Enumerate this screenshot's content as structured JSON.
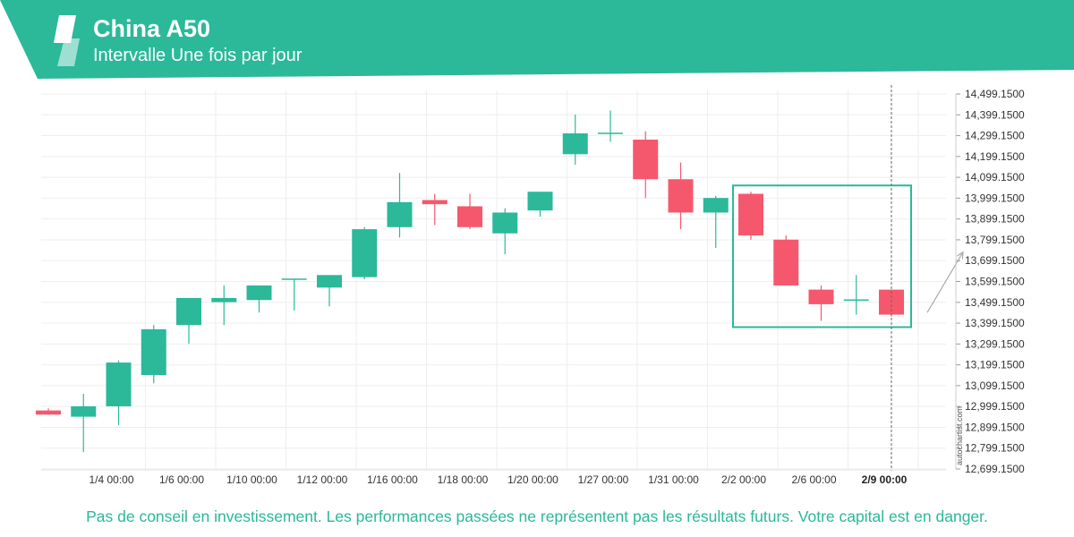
{
  "header": {
    "title": "China A50",
    "subtitle": "Intervalle Une fois par jour",
    "brand_color": "#2bb99a",
    "logo_icon": "autochartist-logo-icon"
  },
  "watermark": "autochartist.com",
  "disclaimer": "Pas de conseil en investissement. Les performances passées ne représentent pas les résultats futurs. Votre capital est en danger.",
  "colors": {
    "up": "#2bb99a",
    "down": "#f5586c",
    "pattern_box": "#2bb99a",
    "grid": "#eeeeee",
    "axis_text": "#333333"
  },
  "chart_data": {
    "type": "candlestick",
    "title": "China A50",
    "ylim": [
      12699.15,
      14499.15
    ],
    "y_ticks": [
      "14,499.1500",
      "14,399.1500",
      "14,299.1500",
      "14,199.1500",
      "14,099.1500",
      "13,999.1500",
      "13,899.1500",
      "13,799.1500",
      "13,699.1500",
      "13,599.1500",
      "13,499.1500",
      "13,399.1500",
      "13,299.1500",
      "13,199.1500",
      "13,099.1500",
      "12,999.1500",
      "12,899.1500",
      "12,799.1500",
      "12,699.1500"
    ],
    "x_ticks": [
      {
        "label": "1/4 00:00",
        "index": 2
      },
      {
        "label": "1/6 00:00",
        "index": 4
      },
      {
        "label": "1/10 00:00",
        "index": 6
      },
      {
        "label": "1/12 00:00",
        "index": 8
      },
      {
        "label": "1/16 00:00",
        "index": 10
      },
      {
        "label": "1/18 00:00",
        "index": 12
      },
      {
        "label": "1/20 00:00",
        "index": 14
      },
      {
        "label": "1/27 00:00",
        "index": 16
      },
      {
        "label": "1/31 00:00",
        "index": 18
      },
      {
        "label": "2/2 00:00",
        "index": 20
      },
      {
        "label": "2/6 00:00",
        "index": 22
      },
      {
        "label": "2/9 00:00",
        "index": 24,
        "bold": true
      }
    ],
    "candles": [
      {
        "o": 12980,
        "h": 12990,
        "l": 12960,
        "c": 12960
      },
      {
        "o": 12950,
        "h": 13060,
        "l": 12780,
        "c": 13000
      },
      {
        "o": 13000,
        "h": 13220,
        "l": 12910,
        "c": 13210
      },
      {
        "o": 13150,
        "h": 13390,
        "l": 13110,
        "c": 13370
      },
      {
        "o": 13390,
        "h": 13520,
        "l": 13300,
        "c": 13520
      },
      {
        "o": 13500,
        "h": 13580,
        "l": 13390,
        "c": 13520
      },
      {
        "o": 13510,
        "h": 13580,
        "l": 13450,
        "c": 13580
      },
      {
        "o": 13610,
        "h": 13610,
        "l": 13460,
        "c": 13610
      },
      {
        "o": 13570,
        "h": 13620,
        "l": 13480,
        "c": 13630
      },
      {
        "o": 13620,
        "h": 13860,
        "l": 13610,
        "c": 13850
      },
      {
        "o": 13860,
        "h": 14120,
        "l": 13810,
        "c": 13980
      },
      {
        "o": 13990,
        "h": 14020,
        "l": 13870,
        "c": 13970
      },
      {
        "o": 13960,
        "h": 14020,
        "l": 13850,
        "c": 13860
      },
      {
        "o": 13830,
        "h": 13950,
        "l": 13730,
        "c": 13930
      },
      {
        "o": 13940,
        "h": 14030,
        "l": 13910,
        "c": 14030
      },
      {
        "o": 14210,
        "h": 14400,
        "l": 14160,
        "c": 14310
      },
      {
        "o": 14310,
        "h": 14420,
        "l": 14270,
        "c": 14310
      },
      {
        "o": 14280,
        "h": 14320,
        "l": 14000,
        "c": 14090
      },
      {
        "o": 14090,
        "h": 14170,
        "l": 13850,
        "c": 13930
      },
      {
        "o": 13930,
        "h": 14010,
        "l": 13760,
        "c": 14000
      },
      {
        "o": 14020,
        "h": 14030,
        "l": 13800,
        "c": 13820
      },
      {
        "o": 13800,
        "h": 13820,
        "l": 13590,
        "c": 13580
      },
      {
        "o": 13560,
        "h": 13580,
        "l": 13410,
        "c": 13490
      },
      {
        "o": 13510,
        "h": 13630,
        "l": 13440,
        "c": 13510
      },
      {
        "o": 13560,
        "h": 13560,
        "l": 13430,
        "c": 13440
      }
    ],
    "pattern_box": {
      "from_index": 20,
      "to_index": 24,
      "y_top": 14060,
      "y_bottom": 13380
    },
    "arrow": {
      "from_price": 13450,
      "to_price": 13740
    },
    "current_marker_index": 24
  }
}
